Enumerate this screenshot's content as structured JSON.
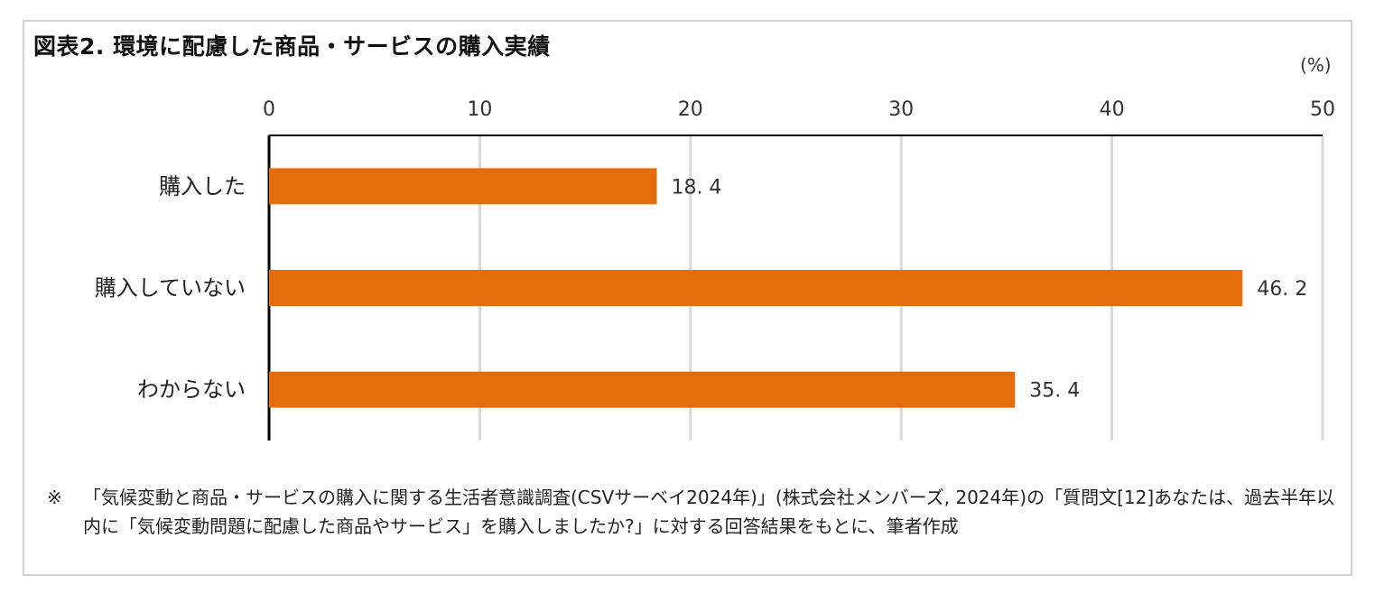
{
  "title": "図表2. 環境に配慮した商品・サービスの購入実績",
  "unit_label": "(%)",
  "chart_data": {
    "type": "bar",
    "orientation": "horizontal",
    "categories": [
      "購入した",
      "購入していない",
      "わからない"
    ],
    "values": [
      18.4,
      46.2,
      35.4
    ],
    "value_labels": [
      "18. 4",
      "46. 2",
      "35. 4"
    ],
    "xlim": [
      0,
      50
    ],
    "xticks": [
      0,
      10,
      20,
      30,
      40,
      50
    ],
    "grid": true,
    "bar_color": "#e46c0a"
  },
  "note": {
    "mark": "※",
    "text": "「気候変動と商品・サービスの購入に関する生活者意識調査(CSVサーベイ2024年)」(株式会社メンバーズ, 2024年)の「質問文[12]あなたは、過去半年以内に「気候変動問題に配慮した商品やサービス」を購入しましたか?」に対する回答結果をもとに、筆者作成"
  }
}
